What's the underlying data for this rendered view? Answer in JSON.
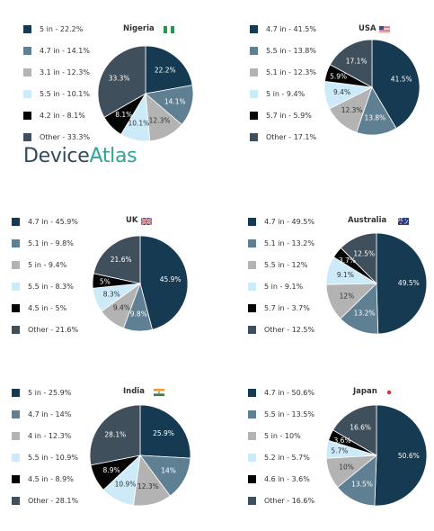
{
  "brand": {
    "part1": "Device",
    "part2": "Atlas"
  },
  "chart_data": [
    {
      "type": "pie",
      "title": "Nigeria",
      "flag": "nigeria-flag",
      "legend": [
        "5 in - 22.2%",
        "4.7 in - 14.1%",
        "3.1 in - 12.3%",
        "5.5 in - 10.1%",
        "4.2 in - 8.1%",
        "Other - 33.3%"
      ],
      "categories": [
        "5 in",
        "4.7 in",
        "3.1 in",
        "5.5 in",
        "4.2 in",
        "Other"
      ],
      "values": [
        22.2,
        14.1,
        12.3,
        10.1,
        8.1,
        33.3
      ],
      "labels": [
        "22.2%",
        "14.1%",
        "12.3%",
        "10.1%",
        "8.1%",
        "33.3%"
      ]
    },
    {
      "type": "pie",
      "title": "USA",
      "flag": "usa-flag",
      "legend": [
        "4.7 in - 41.5%",
        "5.5 in - 13.8%",
        "5.1 in - 12.3%",
        "5 in - 9.4%",
        "5.7 in - 5.9%",
        "Other - 17.1%"
      ],
      "categories": [
        "4.7 in",
        "5.5 in",
        "5.1 in",
        "5 in",
        "5.7 in",
        "Other"
      ],
      "values": [
        41.5,
        13.8,
        12.3,
        9.4,
        5.9,
        17.1
      ],
      "labels": [
        "41.5%",
        "13.8%",
        "12.3%",
        "9.4%",
        "5.9%",
        "17.1%"
      ]
    },
    {
      "type": "pie",
      "title": "UK",
      "flag": "uk-flag",
      "legend": [
        "4.7 in - 45.9%",
        "5.1 in - 9.8%",
        "5 in - 9.4%",
        "5.5 in - 8.3%",
        "4.5 in - 5%",
        "Other - 21.6%"
      ],
      "categories": [
        "4.7 in",
        "5.1 in",
        "5 in",
        "5.5 in",
        "4.5 in",
        "Other"
      ],
      "values": [
        45.9,
        9.8,
        9.4,
        8.3,
        5,
        21.6
      ],
      "labels": [
        "45.9%",
        "9.8%",
        "9.4%",
        "8.3%",
        "5%",
        "21.6%"
      ]
    },
    {
      "type": "pie",
      "title": "Australia",
      "flag": "australia-flag",
      "legend": [
        "4.7 in - 49.5%",
        "5.1 in - 13.2%",
        "5.5 in - 12%",
        "5 in - 9.1%",
        "5.7 in - 3.7%",
        "Other - 12.5%"
      ],
      "categories": [
        "4.7 in",
        "5.1 in",
        "5.5 in",
        "5 in",
        "5.7 in",
        "Other"
      ],
      "values": [
        49.5,
        13.2,
        12,
        9.1,
        3.7,
        12.5
      ],
      "labels": [
        "49.5%",
        "13.2%",
        "12%",
        "9.1%",
        "3.7%",
        "12.5%"
      ]
    },
    {
      "type": "pie",
      "title": "India",
      "flag": "india-flag",
      "legend": [
        "5 in - 25.9%",
        "4.7 in - 14%",
        "4 in - 12.3%",
        "5.5 in - 10.9%",
        "4.5 in - 8.9%",
        "Other - 28.1%"
      ],
      "categories": [
        "5 in",
        "4.7 in",
        "4 in",
        "5.5 in",
        "4.5 in",
        "Other"
      ],
      "values": [
        25.9,
        14,
        12.3,
        10.9,
        8.9,
        28.1
      ],
      "labels": [
        "25.9%",
        "14%",
        "12.3%",
        "10.9%",
        "8.9%",
        "28.1%"
      ]
    },
    {
      "type": "pie",
      "title": "Japan",
      "flag": "japan-flag",
      "legend": [
        "4.7 in - 50.6%",
        "5.5 in - 13.5%",
        "5 in - 10%",
        "5.2 in - 5.7%",
        "4.6 in - 3.6%",
        "Other - 16.6%"
      ],
      "categories": [
        "4.7 in",
        "5.5 in",
        "5 in",
        "5.2 in",
        "4.6 in",
        "Other"
      ],
      "values": [
        50.6,
        13.5,
        10,
        5.7,
        3.6,
        16.6
      ],
      "labels": [
        "50.6%",
        "13.5%",
        "10%",
        "5.7%",
        "3.6%",
        "16.6%"
      ]
    }
  ],
  "colors": [
    "#153a52",
    "#5f7f93",
    "#b3b3b3",
    "#cdeaf9",
    "#050505",
    "#3f505c"
  ],
  "label_colors": [
    "#ffffff",
    "#ffffff",
    "#333333",
    "#333333",
    "#ffffff",
    "#ffffff"
  ]
}
